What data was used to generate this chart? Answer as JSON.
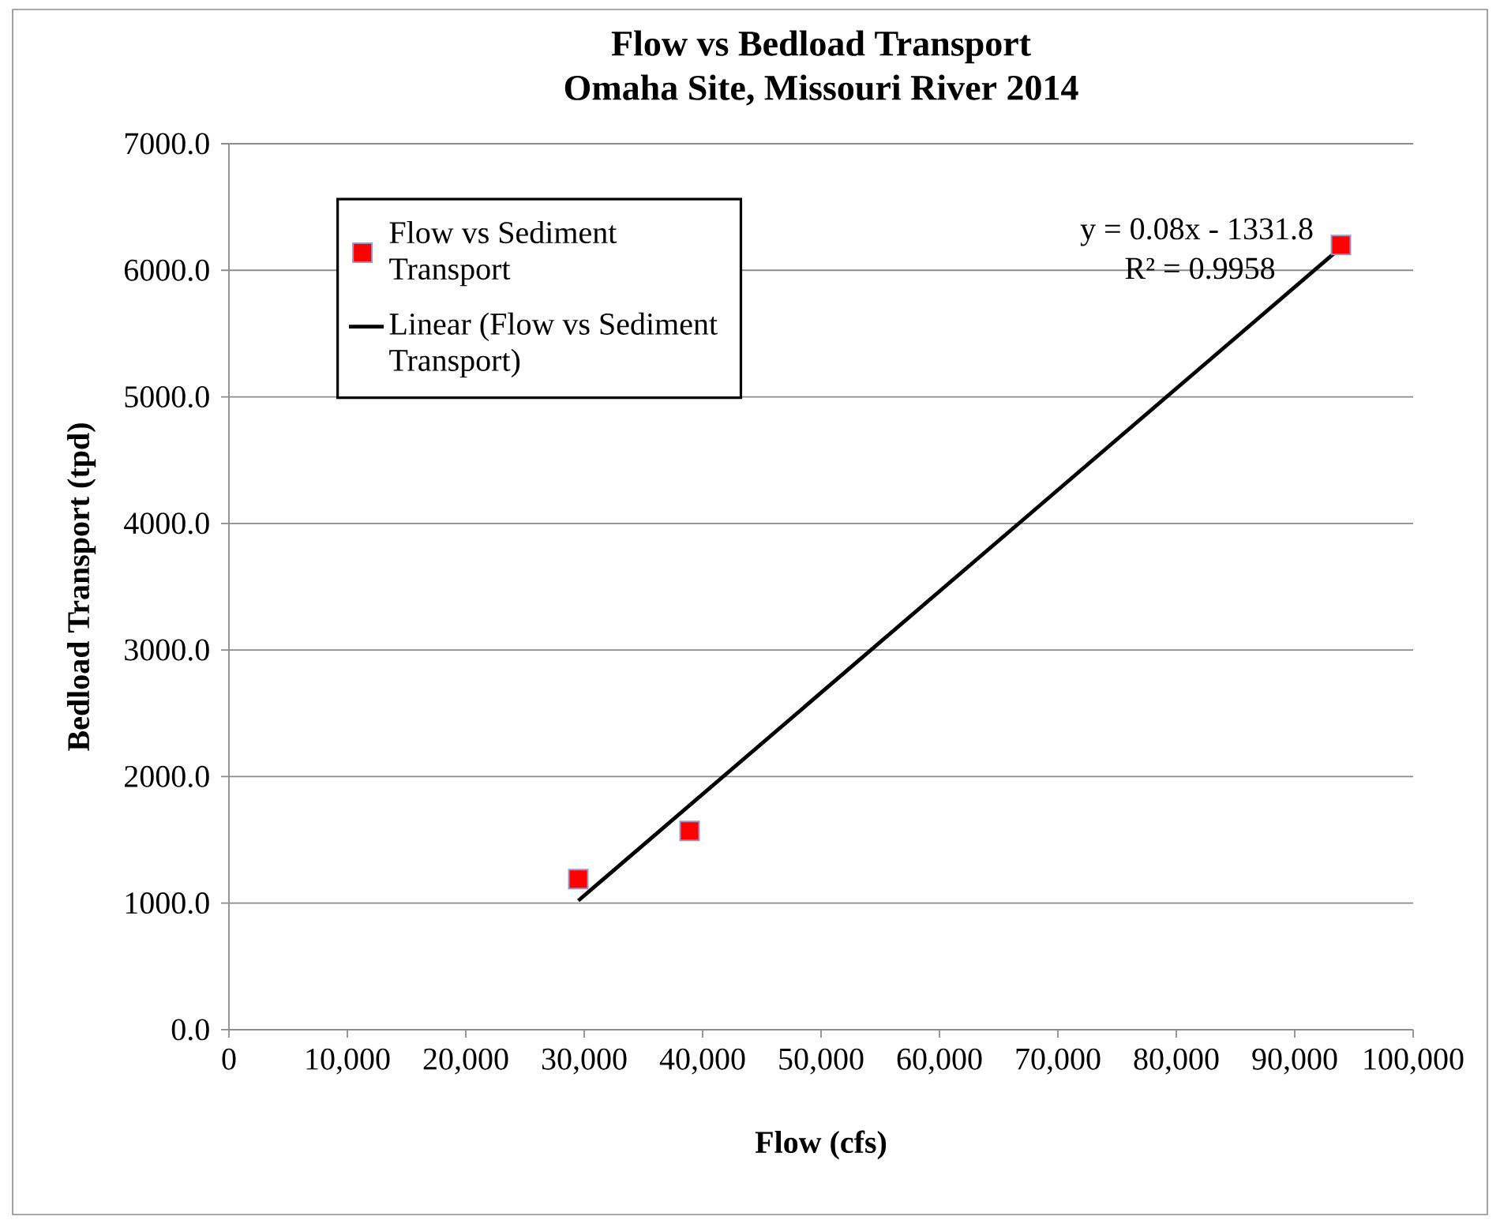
{
  "chart_data": {
    "type": "scatter",
    "title": "Flow vs Bedload Transport",
    "subtitle": "Omaha Site, Missouri River 2014",
    "xlabel": "Flow (cfs)",
    "ylabel": "Bedload Transport (tpd)",
    "xlim": [
      0,
      100000
    ],
    "ylim": [
      0,
      7000
    ],
    "xticks": [
      {
        "value": 0,
        "label": "0"
      },
      {
        "value": 10000,
        "label": "10,000"
      },
      {
        "value": 20000,
        "label": "20,000"
      },
      {
        "value": 30000,
        "label": "30,000"
      },
      {
        "value": 40000,
        "label": "40,000"
      },
      {
        "value": 50000,
        "label": "50,000"
      },
      {
        "value": 60000,
        "label": "60,000"
      },
      {
        "value": 70000,
        "label": "70,000"
      },
      {
        "value": 80000,
        "label": "80,000"
      },
      {
        "value": 90000,
        "label": "90,000"
      },
      {
        "value": 100000,
        "label": "100,000"
      }
    ],
    "yticks": [
      {
        "value": 0,
        "label": "0.0"
      },
      {
        "value": 1000,
        "label": "1000.0"
      },
      {
        "value": 2000,
        "label": "2000.0"
      },
      {
        "value": 3000,
        "label": "3000.0"
      },
      {
        "value": 4000,
        "label": "4000.0"
      },
      {
        "value": 5000,
        "label": "5000.0"
      },
      {
        "value": 6000,
        "label": "6000.0"
      },
      {
        "value": 7000,
        "label": "7000.0"
      }
    ],
    "grid": "y",
    "legend": "top left",
    "series": [
      {
        "name": "Flow vs Sediment Transport",
        "marker": "square",
        "color": "#ff0000",
        "x": [
          29500,
          38900,
          93900
        ],
        "values": [
          1190,
          1570,
          6200
        ]
      },
      {
        "name": "Linear (Flow vs Sediment Transport)",
        "type": "line",
        "marker": "none",
        "line_style": "solid",
        "color": "#000000",
        "x": [
          29500,
          93900
        ],
        "values": [
          1020,
          6180
        ]
      }
    ],
    "annotations": [
      "y = 0.08x - 1331.8",
      "R² = 0.9958"
    ]
  }
}
